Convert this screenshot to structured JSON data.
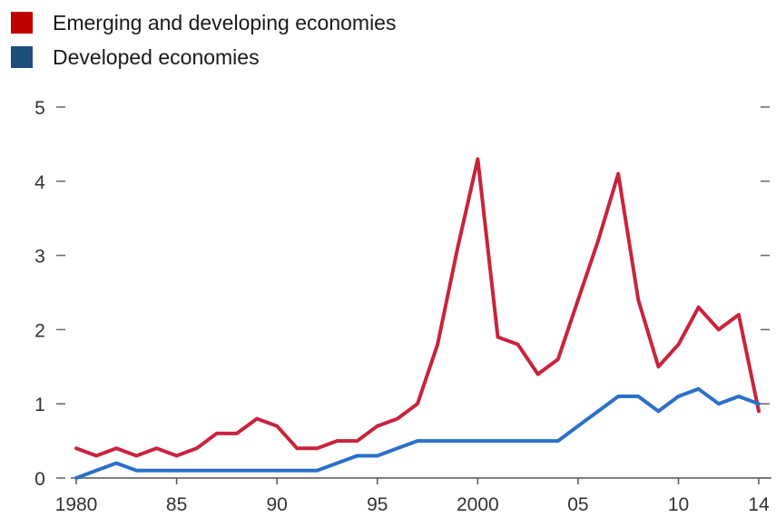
{
  "chart_data": {
    "type": "line",
    "title": "",
    "xlabel": "",
    "ylabel": "",
    "x": [
      1980,
      1981,
      1982,
      1983,
      1984,
      1985,
      1986,
      1987,
      1988,
      1989,
      1990,
      1991,
      1992,
      1993,
      1994,
      1995,
      1996,
      1997,
      1998,
      1999,
      2000,
      2001,
      2002,
      2003,
      2004,
      2005,
      2006,
      2007,
      2008,
      2009,
      2010,
      2011,
      2012,
      2013,
      2014
    ],
    "xlim": [
      1980,
      2014
    ],
    "ylim": [
      0,
      5
    ],
    "x_ticks": [
      {
        "value": 1980,
        "label": "1980"
      },
      {
        "value": 1985,
        "label": "85"
      },
      {
        "value": 1990,
        "label": "90"
      },
      {
        "value": 1995,
        "label": "95"
      },
      {
        "value": 2000,
        "label": "2000"
      },
      {
        "value": 2005,
        "label": "05"
      },
      {
        "value": 2010,
        "label": "10"
      },
      {
        "value": 2014,
        "label": "14"
      }
    ],
    "y_ticks": [
      {
        "value": 0,
        "label": "0"
      },
      {
        "value": 1,
        "label": "1"
      },
      {
        "value": 2,
        "label": "2"
      },
      {
        "value": 3,
        "label": "3"
      },
      {
        "value": 4,
        "label": "4"
      },
      {
        "value": 5,
        "label": "5"
      }
    ],
    "grid": false,
    "legend_position": "top-left",
    "series": [
      {
        "name": "Emerging and developing economies",
        "color": "#c8243c",
        "values": [
          0.4,
          0.3,
          0.4,
          0.3,
          0.4,
          0.3,
          0.4,
          0.6,
          0.6,
          0.8,
          0.7,
          0.4,
          0.4,
          0.5,
          0.5,
          0.7,
          0.8,
          1.0,
          1.8,
          3.1,
          4.3,
          1.9,
          1.8,
          1.4,
          1.6,
          2.4,
          3.2,
          4.1,
          2.4,
          1.5,
          1.8,
          2.3,
          2.0,
          2.2,
          0.9
        ]
      },
      {
        "name": "Developed economies",
        "color": "#2b70c9",
        "values": [
          0.0,
          0.1,
          0.2,
          0.1,
          0.1,
          0.1,
          0.1,
          0.1,
          0.1,
          0.1,
          0.1,
          0.1,
          0.1,
          0.2,
          0.3,
          0.3,
          0.4,
          0.5,
          0.5,
          0.5,
          0.5,
          0.5,
          0.5,
          0.5,
          0.5,
          0.7,
          0.9,
          1.1,
          1.1,
          0.9,
          1.1,
          1.2,
          1.0,
          1.1,
          1.0
        ]
      }
    ]
  },
  "legend": [
    {
      "label": "Emerging and developing economies",
      "color": "#c00000"
    },
    {
      "label": "Developed economies",
      "color": "#1f4e79"
    }
  ]
}
